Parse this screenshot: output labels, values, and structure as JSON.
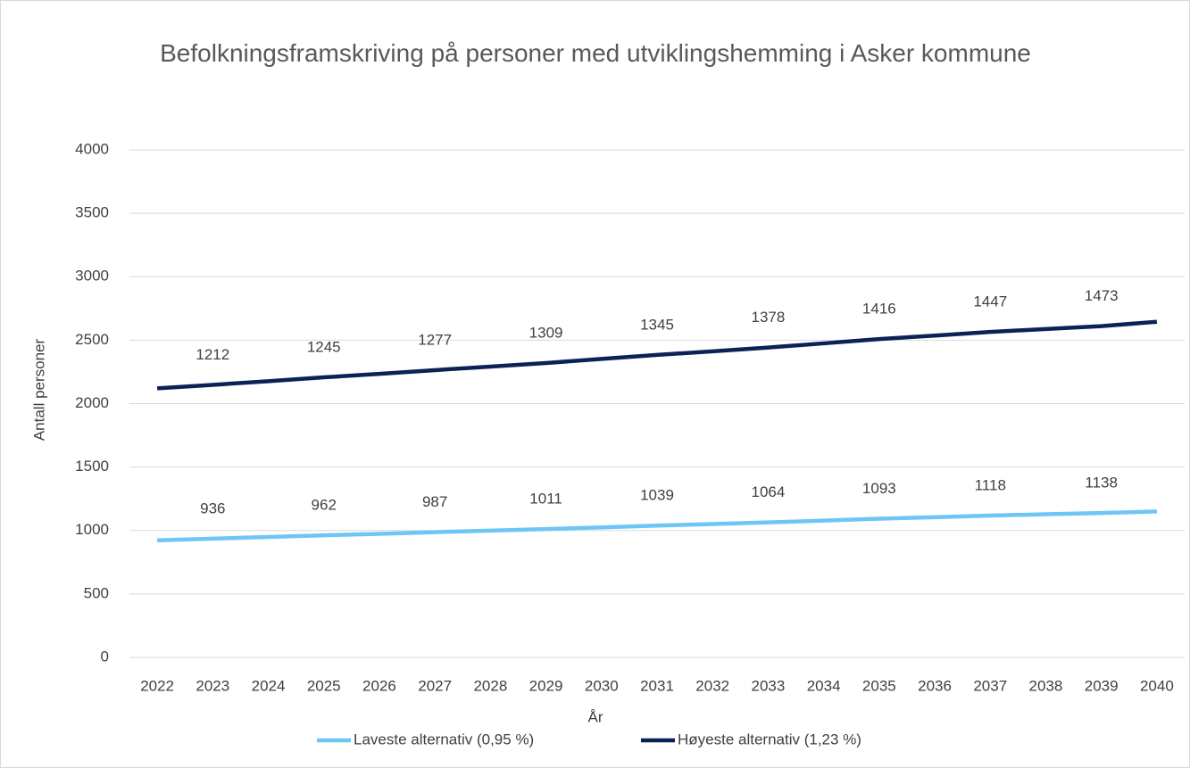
{
  "chart_data": {
    "type": "line",
    "stacked": true,
    "title": "Befolkningsframskriving på personer med utviklingshemming i Asker kommune",
    "x_label": "År",
    "y_label": "Antall personer",
    "categories": [
      "2022",
      "2023",
      "2024",
      "2025",
      "2026",
      "2027",
      "2028",
      "2029",
      "2030",
      "2031",
      "2032",
      "2033",
      "2034",
      "2035",
      "2036",
      "2037",
      "2038",
      "2039",
      "2040"
    ],
    "series": [
      {
        "name": "Laveste alternativ (0,95 %)",
        "color": "#6ec6f5",
        "values": [
          923,
          936,
          949,
          962,
          974,
          987,
          999,
          1011,
          1025,
          1039,
          1051,
          1064,
          1078,
          1093,
          1105,
          1118,
          1128,
          1138,
          1150
        ],
        "value_labels": [
          null,
          "936",
          null,
          "962",
          null,
          "987",
          null,
          "1011",
          null,
          "1039",
          null,
          "1064",
          null,
          "1093",
          null,
          "1118",
          null,
          "1138",
          null
        ]
      },
      {
        "name": "Høyeste alternativ (1,23 %)",
        "color": "#0b2255",
        "values": [
          1197,
          1212,
          1228,
          1245,
          1261,
          1277,
          1293,
          1309,
          1327,
          1345,
          1361,
          1378,
          1397,
          1416,
          1431,
          1447,
          1460,
          1473,
          1495
        ],
        "value_labels": [
          null,
          "1212",
          null,
          "1245",
          null,
          "1277",
          null,
          "1309",
          null,
          "1345",
          null,
          "1378",
          null,
          "1416",
          null,
          "1447",
          null,
          "1473",
          null
        ]
      }
    ],
    "ylim": [
      0,
      4000
    ],
    "yticks": [
      0,
      500,
      1000,
      1500,
      2000,
      2500,
      3000,
      3500,
      4000
    ],
    "grid": true,
    "legend": "bottom"
  }
}
